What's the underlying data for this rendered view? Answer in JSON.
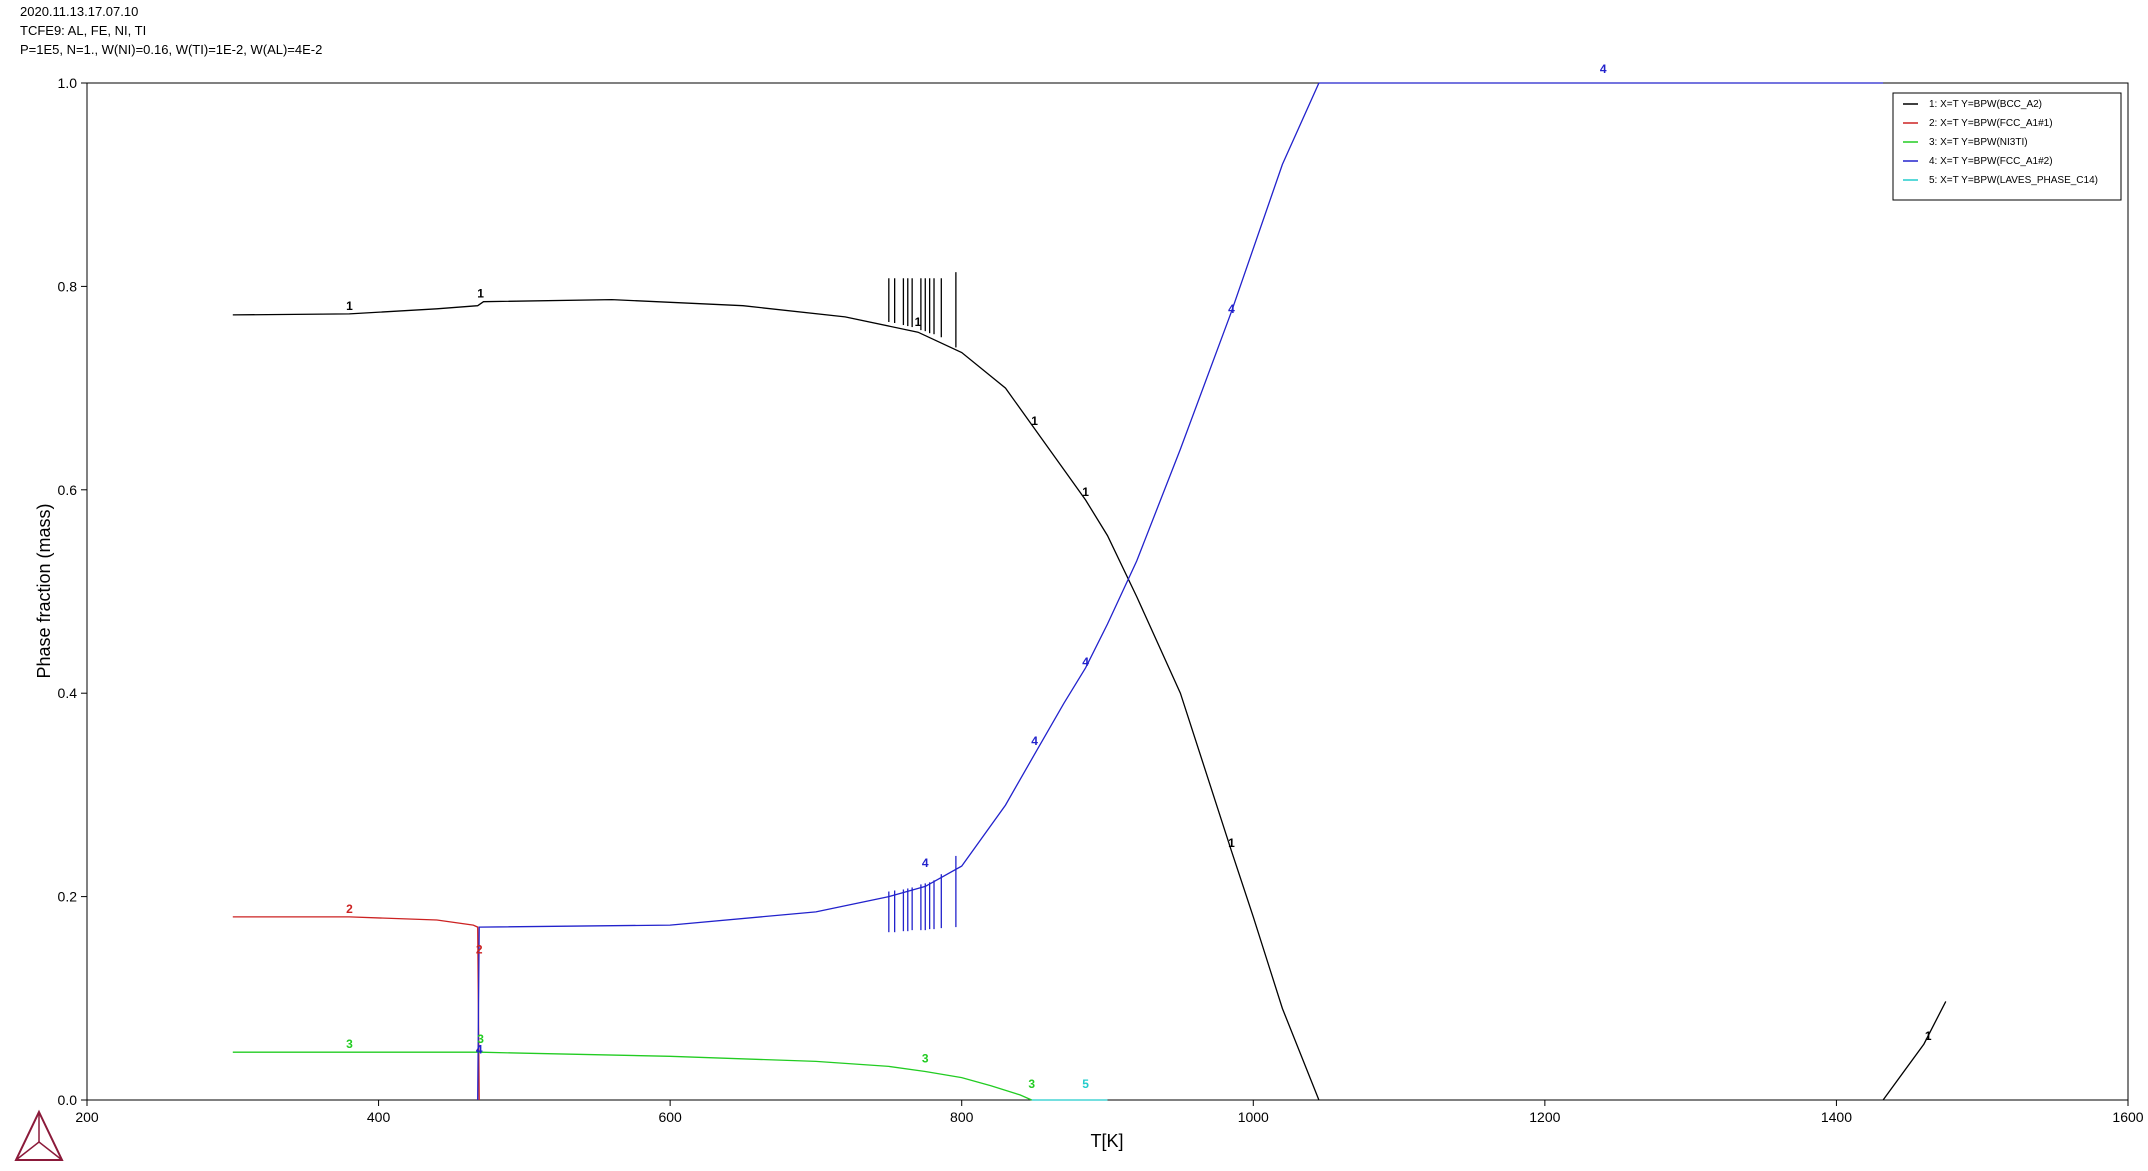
{
  "header": {
    "line1": "2020.11.13.17.07.10",
    "line2": "TCFE9: AL, FE, NI, TI",
    "line3": "P=1E5, N=1., W(NI)=0.16, W(TI)=1E-2, W(AL)=4E-2"
  },
  "logo_icon": "thermo-calc-triangle-logo",
  "chart_data": {
    "type": "line",
    "xlabel": "T[K]",
    "ylabel": "Phase fraction (mass)",
    "xlim": [
      200,
      1600
    ],
    "ylim": [
      0,
      1.0
    ],
    "xticks": [
      200,
      400,
      600,
      800,
      1000,
      1200,
      1400,
      1600
    ],
    "xtick_labels": [
      "200",
      "400",
      "600",
      "800",
      "1000",
      "1200",
      "1400",
      "1600"
    ],
    "yticks": [
      0,
      0.2,
      0.4,
      0.6,
      0.8,
      1.0
    ],
    "ytick_labels": [
      "0.0",
      "0.2",
      "0.4",
      "0.6",
      "0.8",
      "1.0"
    ],
    "legend_position": "top-right",
    "grid": false,
    "series": [
      {
        "name": "1:  X=T  Y=BPW(BCC_A2)",
        "label": "1",
        "color": "#000000",
        "segments": [
          [
            [
              300,
              0.772
            ],
            [
              380,
              0.773
            ],
            [
              440,
              0.778
            ],
            [
              468,
              0.781
            ],
            [
              472,
              0.785
            ],
            [
              560,
              0.787
            ],
            [
              650,
              0.781
            ],
            [
              720,
              0.77
            ],
            [
              770,
              0.755
            ],
            [
              800,
              0.735
            ],
            [
              830,
              0.7
            ],
            [
              850,
              0.66
            ],
            [
              870,
              0.62
            ],
            [
              885,
              0.59
            ],
            [
              900,
              0.555
            ],
            [
              920,
              0.495
            ],
            [
              950,
              0.4
            ],
            [
              985,
              0.245
            ],
            [
              1000,
              0.18
            ],
            [
              1020,
              0.09
            ],
            [
              1045,
              0.0
            ]
          ],
          [
            [
              1432,
              0.0
            ],
            [
              1460,
              0.055
            ],
            [
              1475,
              0.097
            ]
          ]
        ],
        "spikes": [
          [
            750,
            0.765,
            0.808
          ],
          [
            754,
            0.764,
            0.808
          ],
          [
            760,
            0.762,
            0.808
          ],
          [
            763,
            0.761,
            0.808
          ],
          [
            766,
            0.76,
            0.808
          ],
          [
            772,
            0.757,
            0.808
          ],
          [
            775,
            0.756,
            0.808
          ],
          [
            778,
            0.754,
            0.808
          ],
          [
            781,
            0.753,
            0.808
          ],
          [
            786,
            0.75,
            0.808
          ],
          [
            796,
            0.74,
            0.814
          ]
        ],
        "labels": [
          [
            380,
            0.773
          ],
          [
            470,
            0.785
          ],
          [
            770,
            0.757
          ],
          [
            850,
            0.66
          ],
          [
            885,
            0.59
          ],
          [
            985,
            0.245
          ],
          [
            1463,
            0.055
          ]
        ]
      },
      {
        "name": "2:  X=T  Y=BPW(FCC_A1#1)",
        "label": "2",
        "color": "#cc2222",
        "segments": [
          [
            [
              300,
              0.18
            ],
            [
              380,
              0.18
            ],
            [
              440,
              0.177
            ],
            [
              465,
              0.172
            ],
            [
              468,
              0.17
            ],
            [
              469,
              0.0
            ]
          ]
        ],
        "spikes": [],
        "labels": [
          [
            380,
            0.18
          ],
          [
            469,
            0.14
          ]
        ]
      },
      {
        "name": "3:  X=T  Y=BPW(NI3TI)",
        "label": "3",
        "color": "#22cc22",
        "segments": [
          [
            [
              300,
              0.047
            ],
            [
              380,
              0.047
            ],
            [
              466,
              0.047
            ],
            [
              470,
              0.047
            ],
            [
              500,
              0.046
            ],
            [
              600,
              0.043
            ],
            [
              700,
              0.038
            ],
            [
              750,
              0.033
            ],
            [
              775,
              0.028
            ],
            [
              800,
              0.022
            ],
            [
              820,
              0.014
            ],
            [
              840,
              0.005
            ],
            [
              848,
              0.0
            ]
          ]
        ],
        "spikes": [],
        "labels": [
          [
            380,
            0.047
          ],
          [
            470,
            0.052
          ],
          [
            775,
            0.033
          ],
          [
            848,
            0.008
          ]
        ]
      },
      {
        "name": "4:  X=T  Y=BPW(FCC_A1#2)",
        "label": "4",
        "color": "#2222cc",
        "segments": [
          [
            [
              468,
              0.0
            ],
            [
              469,
              0.17
            ],
            [
              600,
              0.172
            ],
            [
              700,
              0.185
            ],
            [
              750,
              0.2
            ],
            [
              775,
              0.21
            ],
            [
              800,
              0.23
            ],
            [
              830,
              0.29
            ],
            [
              850,
              0.34
            ],
            [
              870,
              0.39
            ],
            [
              885,
              0.425
            ],
            [
              900,
              0.468
            ],
            [
              920,
              0.53
            ],
            [
              950,
              0.64
            ],
            [
              985,
              0.775
            ],
            [
              1020,
              0.92
            ],
            [
              1045,
              1.0
            ]
          ],
          [
            [
              1045,
              1.0
            ],
            [
              1432,
              1.0
            ]
          ]
        ],
        "spikes": [
          [
            750,
            0.165,
            0.205
          ],
          [
            754,
            0.165,
            0.206
          ],
          [
            760,
            0.166,
            0.207
          ],
          [
            763,
            0.166,
            0.208
          ],
          [
            766,
            0.167,
            0.209
          ],
          [
            772,
            0.167,
            0.212
          ],
          [
            775,
            0.167,
            0.213
          ],
          [
            778,
            0.168,
            0.214
          ],
          [
            781,
            0.168,
            0.216
          ],
          [
            786,
            0.169,
            0.222
          ],
          [
            796,
            0.17,
            0.24
          ]
        ],
        "labels": [
          [
            469,
            0.042
          ],
          [
            775,
            0.225
          ],
          [
            850,
            0.345
          ],
          [
            885,
            0.423
          ],
          [
            985,
            0.77
          ],
          [
            1240,
            1.006
          ]
        ]
      },
      {
        "name": "5:  X=T  Y=BPW(LAVES_PHASE_C14)",
        "label": "5",
        "color": "#22cccc",
        "segments": [
          [
            [
              848,
              0.0
            ],
            [
              900,
              0.0
            ]
          ]
        ],
        "spikes": [],
        "labels": [
          [
            885,
            0.008
          ]
        ]
      }
    ]
  }
}
